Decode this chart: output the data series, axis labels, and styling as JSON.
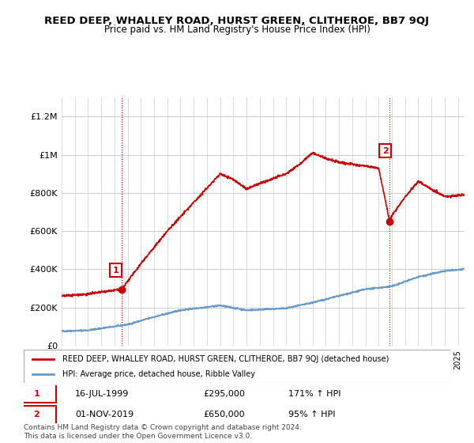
{
  "title": "REED DEEP, WHALLEY ROAD, HURST GREEN, CLITHEROE, BB7 9QJ",
  "subtitle": "Price paid vs. HM Land Registry's House Price Index (HPI)",
  "legend_line1": "REED DEEP, WHALLEY ROAD, HURST GREEN, CLITHEROE, BB7 9QJ (detached house)",
  "legend_line2": "HPI: Average price, detached house, Ribble Valley",
  "annotation1_num": "1",
  "annotation1_date": "16-JUL-1999",
  "annotation1_price": "£295,000",
  "annotation1_hpi": "171% ↑ HPI",
  "annotation2_num": "2",
  "annotation2_date": "01-NOV-2019",
  "annotation2_price": "£650,000",
  "annotation2_hpi": "95% ↑ HPI",
  "footnote": "Contains HM Land Registry data © Crown copyright and database right 2024.\nThis data is licensed under the Open Government Licence v3.0.",
  "red_color": "#cc0000",
  "blue_color": "#6699cc",
  "background_color": "#ffffff",
  "ylim": [
    0,
    1300000
  ],
  "yticks": [
    0,
    200000,
    400000,
    600000,
    800000,
    1000000,
    1200000
  ],
  "ytick_labels": [
    "£0",
    "£200K",
    "£400K",
    "£600K",
    "£800K",
    "£1M",
    "£1.2M"
  ],
  "xstart": 1995.0,
  "xend": 2025.5
}
